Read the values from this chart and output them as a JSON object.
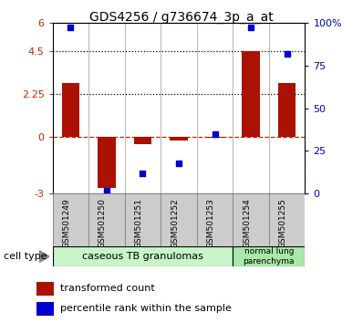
{
  "title": "GDS4256 / g736674_3p_a_at",
  "samples": [
    "GSM501249",
    "GSM501250",
    "GSM501251",
    "GSM501252",
    "GSM501253",
    "GSM501254",
    "GSM501255"
  ],
  "red_bars": [
    2.8,
    -2.7,
    -0.4,
    -0.2,
    -0.05,
    4.5,
    2.8
  ],
  "blue_squares_pct": [
    97,
    2,
    12,
    18,
    35,
    97,
    82
  ],
  "ylim_left": [
    -3,
    6
  ],
  "ylim_right": [
    0,
    100
  ],
  "yticks_left": [
    -3,
    0,
    2.25,
    4.5,
    6
  ],
  "ytick_labels_left": [
    "-3",
    "0",
    "2.25",
    "4.5",
    "6"
  ],
  "yticks_right": [
    0,
    25,
    50,
    75,
    100
  ],
  "ytick_labels_right": [
    "0",
    "25",
    "50",
    "75",
    "100%"
  ],
  "hlines": [
    0,
    2.25,
    4.5
  ],
  "hline_styles": [
    "dashed",
    "dotted",
    "dotted"
  ],
  "hline_colors": [
    "#cc2200",
    "#000000",
    "#000000"
  ],
  "bar_color": "#aa1100",
  "square_color": "#0000cc",
  "group1_label": "caseous TB granulomas",
  "group2_label": "normal lung\nparenchyma",
  "group1_color": "#c8f5c8",
  "group2_color": "#a8e8a8",
  "cell_type_label": "cell type",
  "legend1_label": "transformed count",
  "legend2_label": "percentile rank within the sample",
  "bg_color": "#ffffff",
  "tick_label_color_left": "#cc2200",
  "tick_label_color_right": "#0000cc",
  "separator_color": "#aaaaaa",
  "box_edge_color": "#888888",
  "label_box_color": "#cccccc"
}
